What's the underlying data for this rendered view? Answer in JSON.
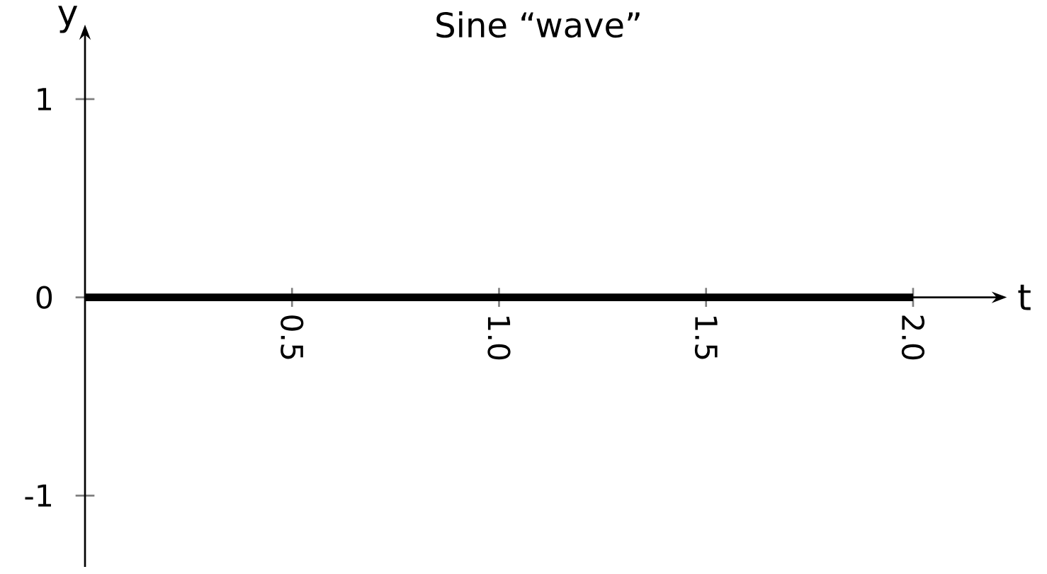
{
  "chart_data": {
    "type": "line",
    "title": "Sine “wave”",
    "xlabel": "t",
    "ylabel": "y",
    "x": [
      0,
      2.0
    ],
    "series": [
      {
        "color": "#000000",
        "values": [
          0,
          0
        ]
      }
    ],
    "xlim": [
      0,
      2.19
    ],
    "ylim": [
      -1.36,
      1.3
    ],
    "xticks": [
      0.5,
      {
        "value": 1.0,
        "label": "1.0"
      },
      1.5,
      {
        "value": 2.0,
        "label": "2.0"
      }
    ],
    "yticks": [
      -1,
      0,
      1
    ],
    "marker": "none",
    "line_style": "solid"
  }
}
